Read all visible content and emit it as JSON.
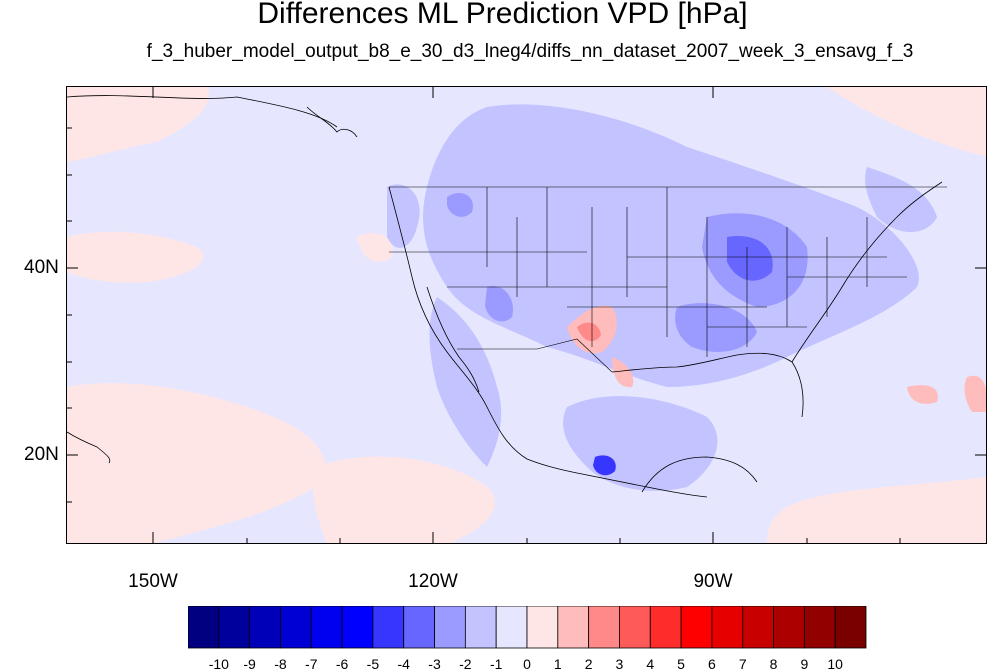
{
  "title": "Differences ML Prediction VPD [hPa]",
  "subtitle": "f_3_huber_model_output_b8_e_30_d3_lneg4/diffs_nn_dataset_2007_week_3_ensavg_f_3",
  "axes": {
    "lat_labels": [
      "40N",
      "20N"
    ],
    "lon_labels": [
      "150W",
      "120W",
      "90W"
    ]
  },
  "colorbar": {
    "labels": [
      "-10",
      "-9",
      "-8",
      "-7",
      "-6",
      "-5",
      "-4",
      "-3",
      "-2",
      "-1",
      "0",
      "1",
      "2",
      "3",
      "4",
      "5",
      "6",
      "7",
      "8",
      "9",
      "10"
    ],
    "colors": [
      "#000080",
      "#00009c",
      "#0000b8",
      "#0000d4",
      "#0000f0",
      "#0000ff",
      "#3636ff",
      "#6767ff",
      "#9b9bff",
      "#c3c3ff",
      "#e6e6ff",
      "#ffe6e6",
      "#ffbcbc",
      "#ff8888",
      "#ff5a5a",
      "#ff2c2c",
      "#ff0000",
      "#e60000",
      "#c80000",
      "#ac0000",
      "#920000",
      "#7a0000"
    ]
  },
  "map": {
    "background_color": "#e6e6ff",
    "ocean_positive_color": "#ffe6e6"
  }
}
